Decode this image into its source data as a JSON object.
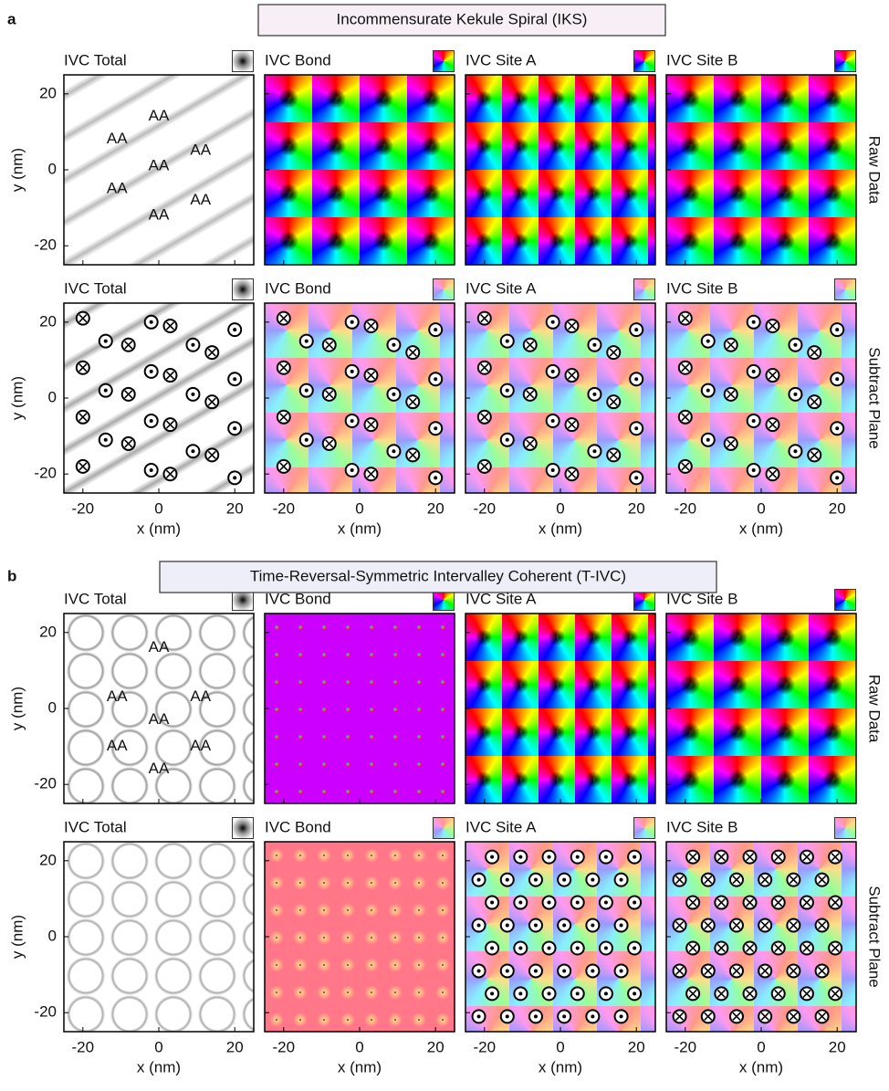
{
  "axes": {
    "xlabel": "x (nm)",
    "ylabel": "y (nm)",
    "xlim": [
      -25,
      25
    ],
    "ylim": [
      -25,
      25
    ],
    "xticks": [
      -20,
      0,
      20
    ],
    "yticks": [
      -20,
      0,
      20
    ]
  },
  "sections": [
    {
      "label": "a",
      "title": "Incommensurate Kekule Spiral (IKS)",
      "rows": [
        {
          "row_label": "Raw Data",
          "panels": [
            {
              "title": "IVC Total",
              "annotations": [
                "AA",
                "AA",
                "AA",
                "AA",
                "AA",
                "AA",
                "AA"
              ]
            },
            {
              "title": "IVC Bond"
            },
            {
              "title": "IVC Site A"
            },
            {
              "title": "IVC Site B"
            }
          ]
        },
        {
          "row_label": "Subtract Plane",
          "panels": [
            {
              "title": "IVC Total"
            },
            {
              "title": "IVC Bond"
            },
            {
              "title": "IVC Site A"
            },
            {
              "title": "IVC Site B"
            }
          ]
        }
      ]
    },
    {
      "label": "b",
      "title": "Time-Reversal-Symmetric Intervalley Coherent (T-IVC)",
      "rows": [
        {
          "row_label": "Raw Data",
          "panels": [
            {
              "title": "IVC Total",
              "annotations": [
                "AA",
                "AA",
                "AA",
                "AA",
                "AA",
                "AA",
                "AA"
              ]
            },
            {
              "title": "IVC Bond"
            },
            {
              "title": "IVC Site A"
            },
            {
              "title": "IVC Site B"
            }
          ]
        },
        {
          "row_label": "Subtract Plane",
          "panels": [
            {
              "title": "IVC Total"
            },
            {
              "title": "IVC Bond"
            },
            {
              "title": "IVC Site A"
            },
            {
              "title": "IVC Site B"
            }
          ]
        }
      ]
    }
  ]
}
